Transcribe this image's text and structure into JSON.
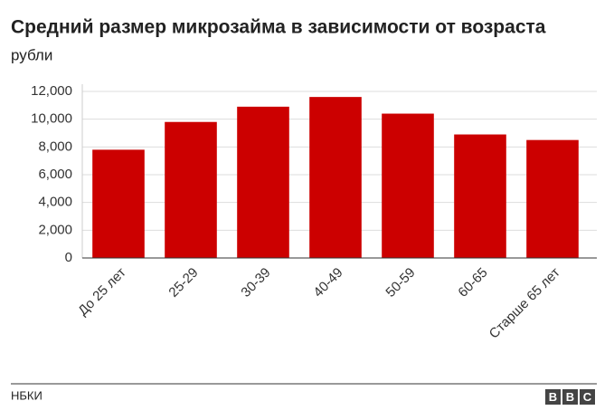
{
  "chart_data": {
    "type": "bar",
    "title": "Средний размер микрозайма в зависимости от возраста",
    "subtitle": "рубли",
    "categories": [
      "До 25 лет",
      "25-29",
      "30-39",
      "40-49",
      "50-59",
      "60-65",
      "Старше 65 лет"
    ],
    "values": [
      7800,
      9800,
      10900,
      11600,
      10400,
      8900,
      8500
    ],
    "color": "#cc0000",
    "ylim": [
      0,
      12000
    ],
    "yticks": [
      0,
      {
        "value": 2000,
        "label": "2,000"
      },
      {
        "value": 4000,
        "label": "4,000"
      },
      {
        "value": 6000,
        "label": "6,000"
      },
      {
        "value": 8000,
        "label": "8,000"
      },
      {
        "value": 10000,
        "label": "10,000"
      },
      {
        "value": 12000,
        "label": "12,000"
      }
    ],
    "grid": true,
    "source": "НБКИ",
    "logo": [
      "B",
      "B",
      "C"
    ]
  }
}
